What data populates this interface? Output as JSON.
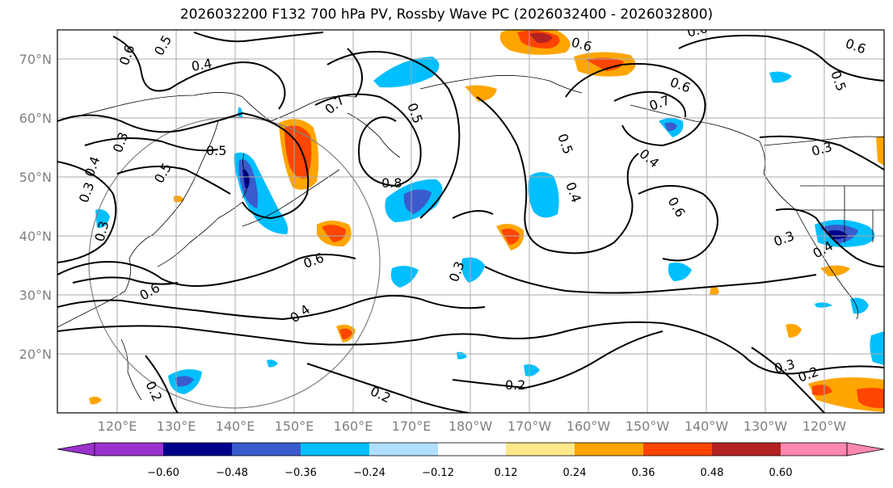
{
  "title": "2026032200 F132 700 hPa PV, Rossby Wave PC (2026032400 - 2026032800)",
  "lat_labels": [
    "70°N",
    "60°N",
    "50°N",
    "40°N",
    "30°N",
    "20°N"
  ],
  "lon_labels": [
    "120°E",
    "130°E",
    "140°E",
    "150°E",
    "160°E",
    "170°E",
    "180°W",
    "170°W",
    "160°W",
    "150°W",
    "140°W",
    "130°W",
    "120°W"
  ],
  "colorbar": {
    "ticks": [
      "−0.60",
      "−0.48",
      "−0.36",
      "−0.24",
      "−0.12",
      "0.12",
      "0.24",
      "0.36",
      "0.48",
      "0.60"
    ],
    "colors": [
      "#9932CC",
      "#00008B",
      "#3A5BCC",
      "#00BFFF",
      "#B0E0FF",
      "#FFFFFF",
      "#FFE88A",
      "#FFA500",
      "#FF4500",
      "#B22222",
      "#FF88B0"
    ]
  },
  "contour_labels": [
    "0.6",
    "0.5",
    "0.4",
    "0.3",
    "0.4",
    "0.3",
    "0.5",
    "0.5",
    "0.3",
    "0.6",
    "0.4",
    "0.7",
    "0.8",
    "0.6",
    "0.5",
    "0.6",
    "0.7",
    "0.4",
    "0.4",
    "0.6",
    "0.6",
    "0.3",
    "0.3",
    "0.5",
    "0.6",
    "0.4",
    "0.2",
    "0.2",
    "0.2",
    "0.3",
    "0.2",
    "0.3",
    "0.5",
    "0.6"
  ],
  "colors": {
    "contour": "#000000",
    "grid": "#aaaaaa",
    "axis_text": "#808080"
  }
}
